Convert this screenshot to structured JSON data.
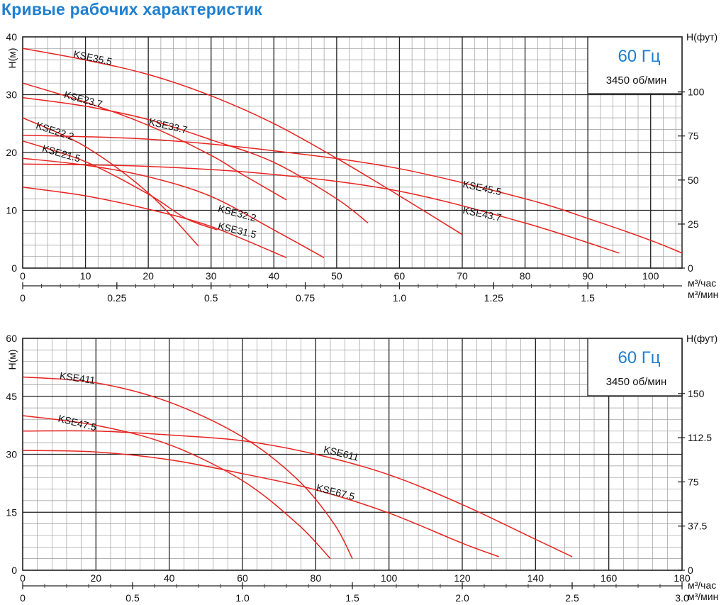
{
  "title": "Кривые рабочих характеристик",
  "colors": {
    "curve": "#e8231f",
    "title": "#1e7fd0",
    "grid_major": "#222222",
    "grid_minor": "#9a9a9a",
    "legend_freq": "#1e7fd0"
  },
  "chart_data": [
    {
      "type": "line",
      "legend_freq": "60 Гц",
      "legend_rpm": "3450 об/мин",
      "ylabel": "H(м)",
      "ylabel_right": "H(фут)",
      "xlabel": "м³/час",
      "xlabel2": "м³/мин",
      "xlim": [
        0,
        105
      ],
      "ylim": [
        0,
        40
      ],
      "x_ticks": [
        "0",
        "10",
        "20",
        "30",
        "40",
        "50",
        "60",
        "70",
        "80",
        "90",
        "100"
      ],
      "x_tick_values": [
        0,
        10,
        20,
        30,
        40,
        50,
        60,
        70,
        80,
        90,
        100
      ],
      "x2_ticks": [
        "0",
        "0.25",
        "0.5",
        "0.75",
        "1.0",
        "1.25",
        "1.5"
      ],
      "x2_tick_values": [
        0,
        0.25,
        0.5,
        0.75,
        1.0,
        1.25,
        1.5
      ],
      "y_ticks": [
        "0",
        "10",
        "20",
        "30",
        "40"
      ],
      "y_tick_values": [
        0,
        10,
        20,
        30,
        40
      ],
      "y2_ticks": [
        "0",
        "25",
        "50",
        "75",
        "100"
      ],
      "y2_tick_values": [
        0,
        25,
        50,
        75,
        100
      ],
      "series": [
        {
          "name": "KSE35.5",
          "x": [
            0,
            10,
            20,
            30,
            40,
            50,
            60,
            70
          ],
          "y": [
            38,
            36,
            33.5,
            29.8,
            25,
            19,
            12.5,
            5.8
          ]
        },
        {
          "name": "KSE23.7",
          "x": [
            0,
            10,
            20,
            30,
            35,
            42
          ],
          "y": [
            32,
            28.7,
            24.7,
            19.5,
            16.2,
            11.8
          ]
        },
        {
          "name": "KSE33.7",
          "x": [
            0,
            10,
            20,
            30,
            40,
            50,
            55
          ],
          "y": [
            29.5,
            28,
            25.7,
            22.2,
            18.3,
            12,
            7.8
          ]
        },
        {
          "name": "KSE22.2",
          "x": [
            0,
            10,
            20,
            28
          ],
          "y": [
            26,
            21,
            13,
            3.8
          ]
        },
        {
          "name": "KSE21.5",
          "x": [
            0,
            10,
            20,
            26,
            31
          ],
          "y": [
            22,
            18.4,
            12.8,
            8.6,
            6.6
          ]
        },
        {
          "name": "KSE32.2",
          "x": [
            0,
            10,
            20,
            30,
            40,
            48
          ],
          "y": [
            19,
            17.8,
            15.8,
            12.4,
            6.6,
            1.8
          ]
        },
        {
          "name": "KSE31.5",
          "x": [
            0,
            10,
            20,
            30,
            42
          ],
          "y": [
            14,
            12.5,
            10.2,
            7.2,
            1.8
          ]
        },
        {
          "name": "KSE45.5",
          "x": [
            0,
            20,
            40,
            60,
            80,
            90,
            100,
            105
          ],
          "y": [
            23,
            22.3,
            20.3,
            17.2,
            12,
            8.6,
            4.8,
            2.6
          ]
        },
        {
          "name": "KSE43.7",
          "x": [
            0,
            20,
            40,
            60,
            80,
            95
          ],
          "y": [
            18,
            17.6,
            16.2,
            13.3,
            7.8,
            2.6
          ]
        }
      ],
      "labels": [
        {
          "text": "KSE35.5",
          "x": 8,
          "y": 36.5,
          "rotate": 12
        },
        {
          "text": "KSE23.7",
          "x": 6.5,
          "y": 29.5,
          "rotate": 15
        },
        {
          "text": "KSE33.7",
          "x": 20,
          "y": 24.8,
          "rotate": 13
        },
        {
          "text": "KSE22.2",
          "x": 2,
          "y": 24.2,
          "rotate": 18
        },
        {
          "text": "KSE21.5",
          "x": 3,
          "y": 20.2,
          "rotate": 16
        },
        {
          "text": "KSE32.2",
          "x": 31,
          "y": 9.8,
          "rotate": 15
        },
        {
          "text": "KSE31.5",
          "x": 31,
          "y": 6.8,
          "rotate": 14
        },
        {
          "text": "KSE45.5",
          "x": 70,
          "y": 14,
          "rotate": 12
        },
        {
          "text": "KSE43.7",
          "x": 70,
          "y": 9.5,
          "rotate": 12
        }
      ]
    },
    {
      "type": "line",
      "legend_freq": "60 Гц",
      "legend_rpm": "3450 об/мин",
      "ylabel": "H(м)",
      "ylabel_right": "H(фут)",
      "xlabel": "м³/час",
      "xlabel2": "м³/мин",
      "xlim": [
        0,
        180
      ],
      "ylim": [
        0,
        60
      ],
      "x_ticks": [
        "0",
        "20",
        "40",
        "60",
        "80",
        "100",
        "120",
        "140",
        "160",
        "180"
      ],
      "x_tick_values": [
        0,
        20,
        40,
        60,
        80,
        100,
        120,
        140,
        160,
        180
      ],
      "x2_ticks": [
        "0",
        "0.5",
        "1.0",
        "1.5",
        "2.0",
        "2.5",
        "3.0"
      ],
      "x2_tick_values": [
        0,
        0.5,
        1.0,
        1.5,
        2.0,
        2.5,
        3.0
      ],
      "y_ticks": [
        "0",
        "15",
        "30",
        "45",
        "60"
      ],
      "y_tick_values": [
        0,
        15,
        30,
        45,
        60
      ],
      "y2_ticks": [
        "0",
        "37.5",
        "75",
        "112.5",
        "150"
      ],
      "y2_tick_values": [
        0,
        37.5,
        75,
        112.5,
        150
      ],
      "series": [
        {
          "name": "KSE411",
          "x": [
            0,
            20,
            40,
            60,
            75,
            85,
            90
          ],
          "y": [
            50,
            48.5,
            43.5,
            34.5,
            23.5,
            12,
            3
          ]
        },
        {
          "name": "KSE47.5",
          "x": [
            0,
            20,
            40,
            60,
            75,
            84
          ],
          "y": [
            40,
            37.5,
            32.5,
            23.2,
            12,
            3
          ]
        },
        {
          "name": "KSE611",
          "x": [
            0,
            20,
            40,
            60,
            80,
            100,
            120,
            140,
            150
          ],
          "y": [
            36,
            36,
            35,
            33.5,
            30,
            24.7,
            17,
            8,
            3.5
          ]
        },
        {
          "name": "KSE67.5",
          "x": [
            0,
            20,
            40,
            60,
            80,
            100,
            120,
            130
          ],
          "y": [
            31,
            30.6,
            28.6,
            25,
            20.8,
            14.8,
            7,
            3.5
          ]
        }
      ],
      "labels": [
        {
          "text": "KSE411",
          "x": 10,
          "y": 49.5,
          "rotate": 8
        },
        {
          "text": "KSE47.5",
          "x": 9.5,
          "y": 38.5,
          "rotate": 14
        },
        {
          "text": "KSE611",
          "x": 82,
          "y": 30.5,
          "rotate": 14
        },
        {
          "text": "KSE67.5",
          "x": 80,
          "y": 20.6,
          "rotate": 14
        }
      ]
    }
  ]
}
